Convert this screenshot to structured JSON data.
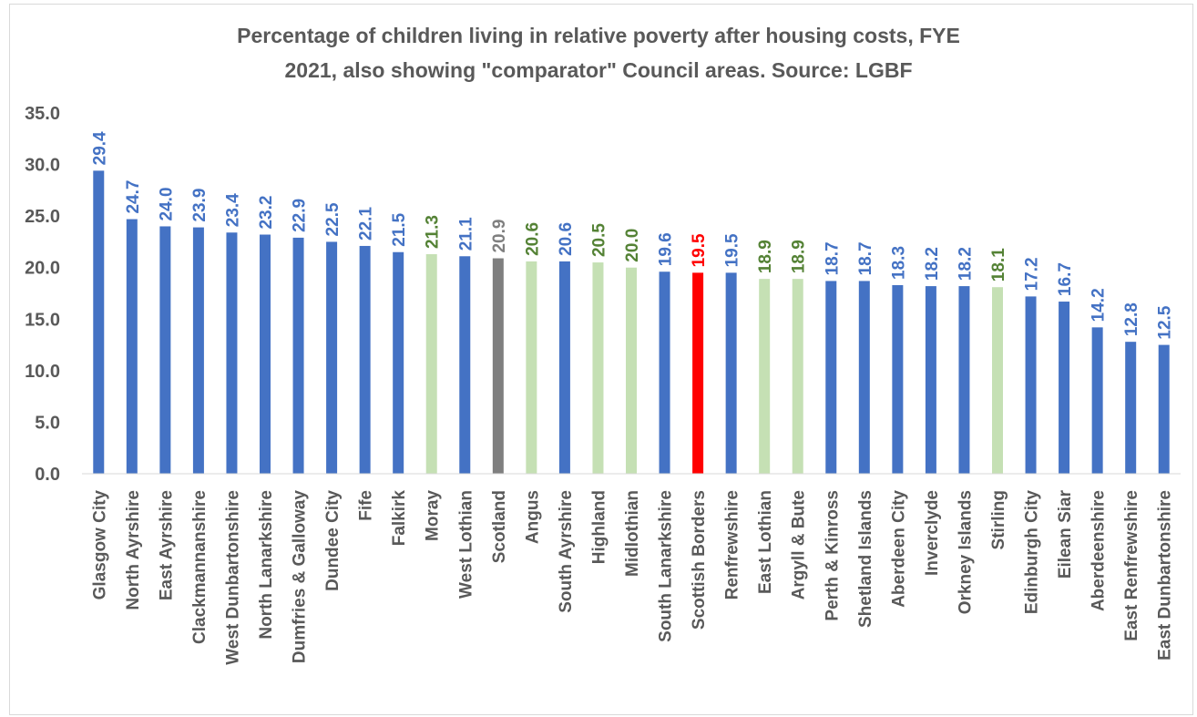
{
  "colors": {
    "default": "#4472c4",
    "comparator": "#c5e0b4",
    "comparator_label": "#548235",
    "scotland": "#7f7f7f",
    "scotland_label": "#7f7f7f",
    "highlight": "#ff0000",
    "highlight_label": "#ff0000",
    "axis_text": "#595959",
    "axis_line": "#d9d9d9"
  },
  "chart_data": {
    "type": "bar",
    "title_lines": [
      "Percentage of children living in relative poverty after housing costs, FYE",
      "2021, also showing \"comparator\" Council areas.  Source: LGBF"
    ],
    "xlabel": "",
    "ylabel": "",
    "ylim": [
      0,
      35
    ],
    "yticks": [
      "0.0",
      "5.0",
      "10.0",
      "15.0",
      "20.0",
      "25.0",
      "30.0",
      "35.0"
    ],
    "grid": false,
    "legend": "none",
    "categories": [
      "Glasgow City",
      "North Ayrshire",
      "East Ayrshire",
      "Clackmannanshire",
      "West Dunbartonshire",
      "North Lanarkshire",
      "Dumfries & Galloway",
      "Dundee City",
      "Fife",
      "Falkirk",
      "Moray",
      "West Lothian",
      "Scotland",
      "Angus",
      "South Ayrshire",
      "Highland",
      "Midlothian",
      "South Lanarkshire",
      "Scottish Borders",
      "Renfrewshire",
      "East Lothian",
      "Argyll & Bute",
      "Perth & Kinross",
      "Shetland Islands",
      "Aberdeen City",
      "Inverclyde",
      "Orkney Islands",
      "Stirling",
      "Edinburgh City",
      "Eilean Siar",
      "Aberdeenshire",
      "East Renfrewshire",
      "East Dunbartonshire"
    ],
    "values": [
      29.4,
      24.7,
      24.0,
      23.9,
      23.4,
      23.2,
      22.9,
      22.5,
      22.1,
      21.5,
      21.3,
      21.1,
      20.9,
      20.6,
      20.6,
      20.5,
      20.0,
      19.6,
      19.5,
      19.5,
      18.9,
      18.9,
      18.7,
      18.7,
      18.3,
      18.2,
      18.2,
      18.1,
      17.2,
      16.7,
      14.2,
      12.8,
      12.5
    ],
    "data_labels": [
      "29.4",
      "24.7",
      "24.0",
      "23.9",
      "23.4",
      "23.2",
      "22.9",
      "22.5",
      "22.1",
      "21.5",
      "21.3",
      "21.1",
      "20.9",
      "20.6",
      "20.6",
      "20.5",
      "20.0",
      "19.6",
      "19.5",
      "19.5",
      "18.9",
      "18.9",
      "18.7",
      "18.7",
      "18.3",
      "18.2",
      "18.2",
      "18.1",
      "17.2",
      "16.7",
      "14.2",
      "12.8",
      "12.5"
    ],
    "groups": [
      "default",
      "default",
      "default",
      "default",
      "default",
      "default",
      "default",
      "default",
      "default",
      "default",
      "comparator",
      "default",
      "scotland",
      "comparator",
      "default",
      "comparator",
      "comparator",
      "default",
      "highlight",
      "default",
      "comparator",
      "comparator",
      "default",
      "default",
      "default",
      "default",
      "default",
      "comparator",
      "default",
      "default",
      "default",
      "default",
      "default"
    ]
  }
}
